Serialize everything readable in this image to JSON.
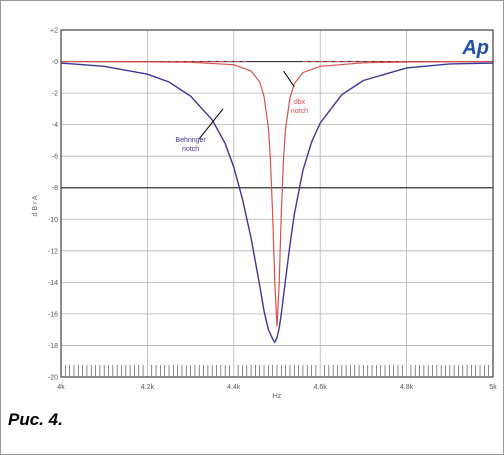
{
  "caption": "Рис. 4.",
  "chart_data": {
    "type": "line",
    "title": "",
    "xlabel": "Hz",
    "ylabel": "d B r A",
    "logo": "Ap",
    "xlim": [
      4000,
      5000
    ],
    "ylim": [
      -20,
      2
    ],
    "x_ticks": [
      4000,
      4200,
      4400,
      4600,
      4800,
      5000
    ],
    "x_tick_labels": [
      "4k",
      "4.2k",
      "4.4k",
      "4.6k",
      "4.8k",
      "5k"
    ],
    "y_ticks": [
      2,
      0,
      -2,
      -4,
      -6,
      -8,
      -10,
      -12,
      -14,
      -16,
      -18,
      -20
    ],
    "y_tick_labels": [
      "+2",
      "-0",
      "-2",
      "-4",
      "-6",
      "-8",
      "-10",
      "-12",
      "-14",
      "-16",
      "-18",
      "-20"
    ],
    "grid": true,
    "series": [
      {
        "name": "Behringer notch",
        "color": "#3a3a9c",
        "x": [
          4000,
          4100,
          4200,
          4250,
          4300,
          4350,
          4380,
          4400,
          4420,
          4440,
          4460,
          4470,
          4480,
          4490,
          4495,
          4500,
          4505,
          4510,
          4520,
          4530,
          4540,
          4560,
          4580,
          4600,
          4650,
          4700,
          4800,
          4900,
          5000
        ],
        "y": [
          -0.1,
          -0.3,
          -0.8,
          -1.3,
          -2.2,
          -3.7,
          -5.2,
          -6.7,
          -8.7,
          -11.2,
          -14.2,
          -15.8,
          -17.0,
          -17.6,
          -17.8,
          -17.5,
          -16.9,
          -16.0,
          -13.8,
          -11.6,
          -9.7,
          -6.9,
          -5.1,
          -3.9,
          -2.1,
          -1.2,
          -0.4,
          -0.15,
          -0.1
        ]
      },
      {
        "name": "dbx notch",
        "color": "#d85050",
        "x": [
          4000,
          4200,
          4300,
          4400,
          4440,
          4460,
          4470,
          4480,
          4485,
          4490,
          4495,
          4500,
          4505,
          4510,
          4515,
          4520,
          4530,
          4540,
          4560,
          4600,
          4700,
          4800,
          5000
        ],
        "y": [
          0,
          -0.02,
          -0.05,
          -0.2,
          -0.6,
          -1.3,
          -2.2,
          -4.2,
          -6.3,
          -9.8,
          -14.0,
          -16.8,
          -14.0,
          -9.6,
          -6.2,
          -4.2,
          -2.3,
          -1.4,
          -0.7,
          -0.3,
          -0.08,
          -0.03,
          0
        ]
      }
    ],
    "annotations": [
      {
        "lines": [
          "Behringer",
          "notch"
        ],
        "color": "#3a3a9c"
      },
      {
        "lines": [
          "dbx",
          "notch"
        ],
        "color": "#d85050"
      }
    ]
  }
}
